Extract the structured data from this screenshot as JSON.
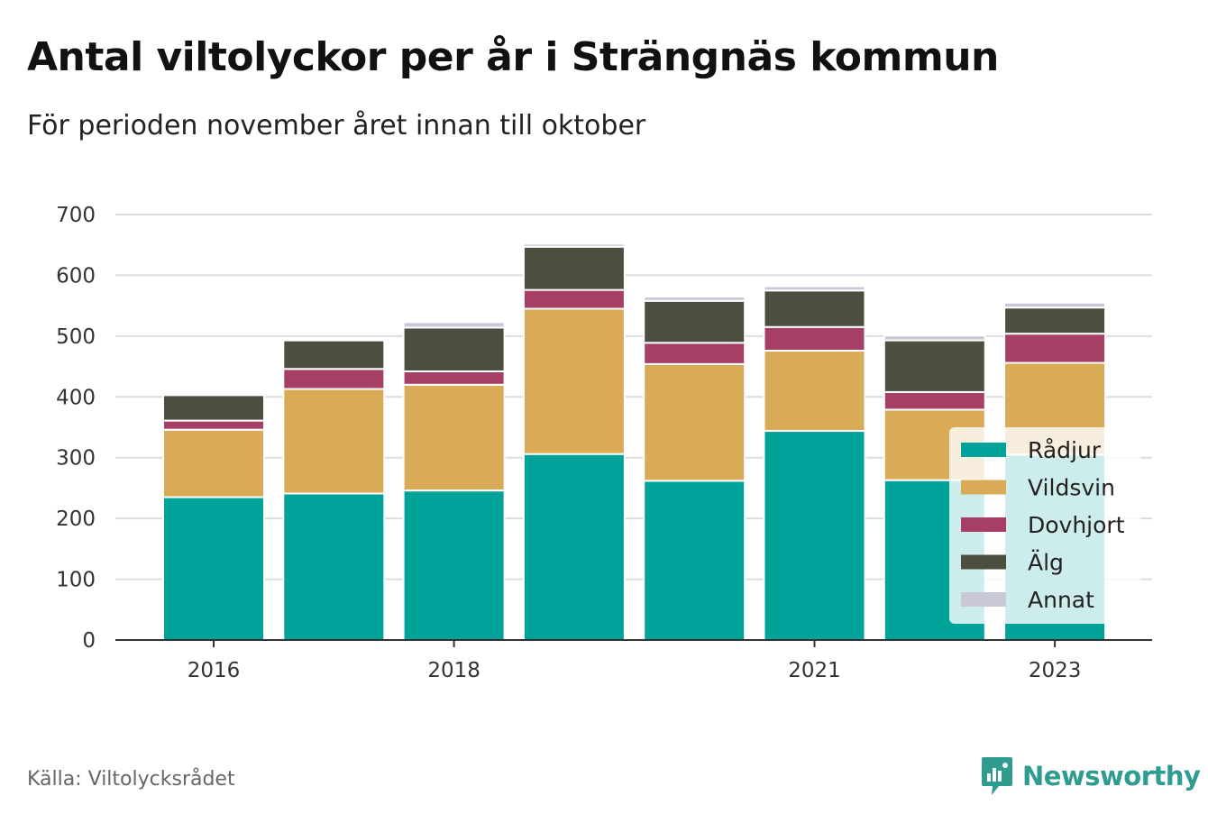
{
  "header": {
    "title": "Antal viltolyckor per år i Strängnäs kommun",
    "subtitle": "För perioden november året innan till oktober"
  },
  "footer": {
    "source": "Källa: Viltolycksrådet",
    "brand": "Newsworthy"
  },
  "chart_data": {
    "type": "bar",
    "stacked": true,
    "categories": [
      "2016",
      "2017",
      "2018",
      "2019",
      "2020",
      "2021",
      "2022",
      "2023"
    ],
    "x_tick_labels": [
      "2016",
      "2018",
      "2021",
      "2023"
    ],
    "ylim": [
      0,
      700
    ],
    "yticks": [
      0,
      100,
      200,
      300,
      400,
      500,
      600,
      700
    ],
    "grid": true,
    "legend_position": "bottom-right",
    "series": [
      {
        "name": "Rådjur",
        "color": "#00a39a",
        "values": [
          235,
          241,
          246,
          306,
          262,
          344,
          263,
          305
        ]
      },
      {
        "name": "Vildsvin",
        "color": "#d9ab57",
        "values": [
          111,
          172,
          174,
          239,
          192,
          132,
          116,
          151
        ]
      },
      {
        "name": "Dovhjort",
        "color": "#a63f66",
        "values": [
          15,
          33,
          22,
          31,
          35,
          39,
          29,
          48
        ]
      },
      {
        "name": "Älg",
        "color": "#4c4e40",
        "values": [
          42,
          47,
          72,
          71,
          69,
          60,
          85,
          43
        ]
      },
      {
        "name": "Annat",
        "color": "#c9c8d6",
        "values": [
          3,
          3,
          9,
          5,
          7,
          7,
          8,
          8
        ]
      }
    ]
  }
}
